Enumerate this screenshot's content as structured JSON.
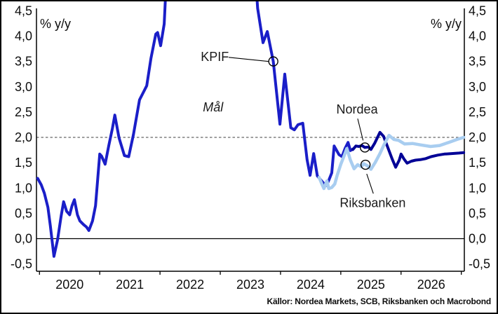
{
  "chart_data": {
    "type": "line",
    "title": "",
    "unit_label": "% y/y",
    "source": "Källor: Nordea Markets, SCB, Riksbanken och Macrobond",
    "grid": "off",
    "target_line": {
      "value": 2.0,
      "color": "#666666"
    },
    "zero_line": {
      "value": 0.0,
      "color": "#000000"
    },
    "y_axis": {
      "min": -0.5,
      "max": 4.5,
      "step": 0.5,
      "sides": "both",
      "tick_values": [
        4.5,
        4.0,
        3.5,
        3.0,
        2.5,
        2.0,
        1.5,
        1.0,
        0.5,
        0.0,
        -0.5
      ],
      "tick_labels": [
        "4,5",
        "4,0",
        "3,5",
        "3,0",
        "2,5",
        "2,0",
        "1,5",
        "1,0",
        "0,5",
        "0,0",
        "-0,5"
      ]
    },
    "x_axis": {
      "min": 2019.95,
      "max": 2027.05,
      "tick_labels": [
        "2020",
        "2021",
        "2022",
        "2023",
        "2024",
        "2025",
        "2026"
      ],
      "label_positions": [
        2020.5,
        2021.5,
        2022.5,
        2023.5,
        2024.5,
        2025.5,
        2026.5
      ],
      "boundary_ticks": [
        2020,
        2021,
        2022,
        2023,
        2024,
        2025,
        2026,
        2027
      ]
    },
    "series": [
      {
        "name": "KPIF",
        "role": "actual",
        "color": "#1a1ec8",
        "width": 4,
        "x": [
          2019.97,
          2020.03,
          2020.08,
          2020.14,
          2020.18,
          2020.24,
          2020.3,
          2020.36,
          2020.4,
          2020.45,
          2020.5,
          2020.54,
          2020.58,
          2020.63,
          2020.67,
          2020.73,
          2020.78,
          2020.82,
          2020.88,
          2020.93,
          2021.0,
          2021.03,
          2021.09,
          2021.15,
          2021.21,
          2021.25,
          2021.32,
          2021.41,
          2021.48,
          2021.56,
          2021.66,
          2021.78,
          2021.85,
          2021.93,
          2021.96,
          2022.01,
          2022.07,
          2022.14,
          2022.86,
          2023.54,
          2023.62,
          2023.71,
          2023.78,
          2023.88,
          2023.99,
          2024.07,
          2024.17,
          2024.23,
          2024.29,
          2024.37,
          2024.44,
          2024.49,
          2024.55,
          2024.61,
          2024.66,
          2024.71,
          2024.76,
          2024.8,
          2024.85,
          2024.89,
          2024.97,
          2025.02,
          2025.07,
          2025.12,
          2025.16,
          2025.2
        ],
        "values": [
          1.19,
          1.06,
          0.9,
          0.62,
          0.25,
          -0.35,
          -0.02,
          0.45,
          0.73,
          0.54,
          0.47,
          0.65,
          0.77,
          0.47,
          0.35,
          0.28,
          0.23,
          0.16,
          0.35,
          0.65,
          1.67,
          1.63,
          1.47,
          1.84,
          2.18,
          2.44,
          1.99,
          1.64,
          1.62,
          2.06,
          2.74,
          3.02,
          3.56,
          4.04,
          4.07,
          3.81,
          4.24,
          6.0,
          7.5,
          6.0,
          4.55,
          3.87,
          4.09,
          3.5,
          2.26,
          3.25,
          2.19,
          2.15,
          2.25,
          2.28,
          1.56,
          1.25,
          1.68,
          1.24,
          1.17,
          1.1,
          1.05,
          1.15,
          1.3,
          1.83,
          1.66,
          1.62,
          1.78,
          1.9,
          1.74,
          1.77
        ]
      },
      {
        "name": "Nordea",
        "role": "forecast",
        "color": "#000096",
        "width": 4,
        "x": [
          2025.2,
          2025.25,
          2025.3,
          2025.35,
          2025.4,
          2025.46,
          2025.5,
          2025.56,
          2025.65,
          2025.71,
          2025.78,
          2025.85,
          2025.91,
          2025.97,
          2026.0,
          2026.05,
          2026.1,
          2026.17,
          2026.24,
          2026.32,
          2026.41,
          2026.5,
          2026.61,
          2026.72,
          2026.84,
          2026.96,
          2027.04
        ],
        "values": [
          1.76,
          1.83,
          1.82,
          1.84,
          1.8,
          1.81,
          1.76,
          1.88,
          2.1,
          2.02,
          1.8,
          1.58,
          1.41,
          1.55,
          1.67,
          1.57,
          1.49,
          1.53,
          1.55,
          1.56,
          1.58,
          1.62,
          1.65,
          1.67,
          1.68,
          1.69,
          1.7
        ]
      },
      {
        "name": "Riksbanken",
        "role": "forecast",
        "color": "#a8cdf0",
        "width": 4.5,
        "x": [
          2024.64,
          2024.69,
          2024.72,
          2024.77,
          2024.8,
          2024.85,
          2024.9,
          2024.94,
          2025.0,
          2025.06,
          2025.1,
          2025.16,
          2025.22,
          2025.28,
          2025.34,
          2025.38,
          2025.44,
          2025.5,
          2025.57,
          2025.65,
          2025.72,
          2025.8,
          2025.88,
          2025.96,
          2026.06,
          2026.19,
          2026.33,
          2026.49,
          2026.64,
          2026.79,
          2026.93,
          2027.04
        ],
        "values": [
          1.21,
          1.07,
          0.99,
          1.14,
          0.99,
          1.01,
          1.08,
          1.25,
          1.47,
          1.65,
          1.78,
          1.55,
          1.38,
          1.46,
          1.42,
          1.48,
          1.44,
          1.37,
          1.5,
          1.68,
          1.86,
          2.04,
          1.96,
          1.94,
          1.87,
          1.88,
          1.85,
          1.82,
          1.84,
          1.9,
          1.96,
          2.0
        ]
      }
    ],
    "annotations": [
      {
        "id": "kpif-label",
        "text": "KPIF",
        "x": 2022.91,
        "y": 3.51,
        "anchor": "middle",
        "italic": false,
        "leader": [
          [
            2023.14,
            3.58
          ],
          [
            2023.8,
            3.5
          ]
        ],
        "marker": {
          "series": 0,
          "x": 2023.88
        }
      },
      {
        "id": "mal-label",
        "text": "Mål",
        "x": 2022.88,
        "y": 2.51,
        "anchor": "middle",
        "italic": true
      },
      {
        "id": "nordea-label",
        "text": "Nordea",
        "x": 2025.27,
        "y": 2.47,
        "anchor": "middle",
        "italic": false,
        "leader": [
          [
            2025.28,
            2.37
          ],
          [
            2025.37,
            1.94
          ]
        ],
        "marker": {
          "series": 1,
          "x": 2025.4
        }
      },
      {
        "id": "riksbanken-label",
        "text": "Riksbanken",
        "x": 2025.53,
        "y": 0.62,
        "anchor": "middle",
        "italic": false,
        "leader": [
          [
            2025.43,
            1.28
          ],
          [
            2025.54,
            0.89
          ]
        ],
        "marker": {
          "series": 2,
          "x": 2025.41
        }
      }
    ]
  }
}
